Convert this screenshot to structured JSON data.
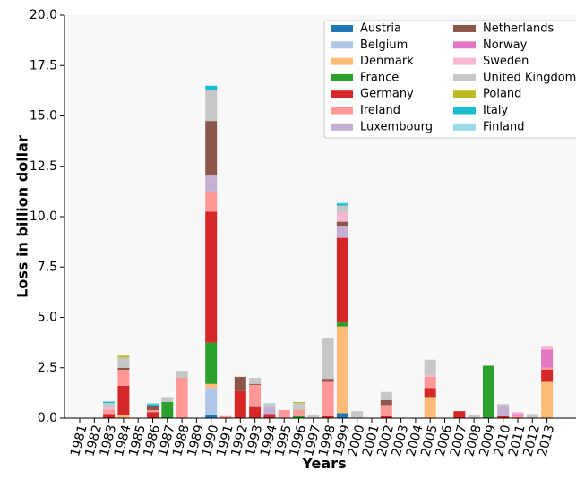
{
  "chart_data": {
    "type": "bar",
    "stacked": true,
    "xlabel": "Years",
    "ylabel": "Loss in billion dollar",
    "ylim": [
      0,
      20
    ],
    "yticks": [
      0.0,
      2.5,
      5.0,
      7.5,
      10.0,
      12.5,
      15.0,
      17.5,
      20.0
    ],
    "ytick_labels": [
      "0.0",
      "2.5",
      "5.0",
      "7.5",
      "10.0",
      "12.5",
      "15.0",
      "17.5",
      "20.0"
    ],
    "legend_position": "top-right",
    "categories": [
      "1981",
      "1982",
      "1983",
      "1984",
      "1985",
      "1986",
      "1987",
      "1988",
      "1989",
      "1990",
      "1991",
      "1992",
      "1993",
      "1994",
      "1995",
      "1996",
      "1997",
      "1998",
      "1999",
      "2000",
      "2001",
      "2002",
      "2003",
      "2004",
      "2005",
      "2006",
      "2007",
      "2008",
      "2009",
      "2010",
      "2011",
      "2012",
      "2013"
    ],
    "series": [
      {
        "name": "Austria",
        "color": "#1f77b4",
        "values": [
          0,
          0,
          0,
          0,
          0,
          0,
          0,
          0,
          0,
          0.15,
          0,
          0,
          0,
          0,
          0,
          0,
          0,
          0,
          0.25,
          0,
          0,
          0,
          0,
          0,
          0,
          0,
          0,
          0,
          0,
          0,
          0,
          0,
          0
        ]
      },
      {
        "name": "Belgium",
        "color": "#aec7e8",
        "values": [
          0,
          0,
          0,
          0,
          0,
          0,
          0,
          0,
          0,
          1.35,
          0,
          0,
          0,
          0,
          0,
          0,
          0,
          0,
          0,
          0,
          0,
          0,
          0,
          0,
          0,
          0,
          0,
          0,
          0,
          0,
          0,
          0,
          0
        ]
      },
      {
        "name": "Denmark",
        "color": "#ffbb78",
        "values": [
          0,
          0,
          0,
          0.15,
          0,
          0,
          0,
          0,
          0,
          0.2,
          0,
          0,
          0,
          0,
          0,
          0,
          0,
          0,
          4.3,
          0,
          0,
          0,
          0,
          0,
          1.05,
          0,
          0,
          0,
          0,
          0,
          0,
          0,
          1.8
        ]
      },
      {
        "name": "France",
        "color": "#2ca02c",
        "values": [
          0,
          0,
          0,
          0,
          0,
          0,
          0.8,
          0,
          0,
          2.05,
          0,
          0,
          0,
          0,
          0,
          0.1,
          0,
          0,
          0.2,
          0,
          0,
          0,
          0,
          0,
          0,
          0,
          0,
          0,
          2.6,
          0,
          0,
          0,
          0
        ]
      },
      {
        "name": "Germany",
        "color": "#d62728",
        "values": [
          0,
          0,
          0.2,
          1.45,
          0,
          0.3,
          0,
          0,
          0,
          6.5,
          0,
          1.35,
          0.55,
          0.2,
          0,
          0,
          0,
          0.1,
          4.2,
          0,
          0,
          0.1,
          0,
          0,
          0.45,
          0,
          0.35,
          0,
          0,
          0.1,
          0,
          0,
          0.6
        ]
      },
      {
        "name": "Ireland",
        "color": "#ff9896",
        "values": [
          0,
          0,
          0.2,
          0.8,
          0,
          0.1,
          0,
          2.0,
          0,
          1.0,
          0.1,
          0,
          1.1,
          0,
          0.4,
          0.3,
          0,
          1.7,
          0,
          0,
          0,
          0.55,
          0,
          0,
          0.55,
          0,
          0,
          0,
          0,
          0,
          0.1,
          0,
          0.1
        ]
      },
      {
        "name": "Luxembourg",
        "color": "#c5b0d5",
        "values": [
          0,
          0,
          0,
          0,
          0,
          0,
          0,
          0,
          0,
          0.8,
          0,
          0,
          0,
          0.35,
          0,
          0,
          0,
          0,
          0.6,
          0,
          0,
          0,
          0,
          0,
          0,
          0,
          0,
          0,
          0,
          0.5,
          0,
          0,
          0
        ]
      },
      {
        "name": "Netherlands",
        "color": "#8c564b",
        "values": [
          0,
          0,
          0,
          0.1,
          0,
          0.2,
          0,
          0,
          0,
          2.7,
          0,
          0.7,
          0.05,
          0,
          0,
          0,
          0,
          0.15,
          0.2,
          0,
          0,
          0.25,
          0,
          0,
          0,
          0,
          0,
          0,
          0,
          0,
          0,
          0,
          0
        ]
      },
      {
        "name": "Norway",
        "color": "#e377c2",
        "values": [
          0,
          0,
          0,
          0,
          0,
          0,
          0,
          0,
          0,
          0,
          0,
          0,
          0,
          0,
          0,
          0,
          0,
          0,
          0,
          0,
          0,
          0,
          0,
          0,
          0,
          0,
          0,
          0,
          0,
          0,
          0.1,
          0,
          0.9
        ]
      },
      {
        "name": "Sweden",
        "color": "#f7b6d2",
        "values": [
          0,
          0,
          0.1,
          0,
          0,
          0,
          0,
          0,
          0,
          0,
          0,
          0,
          0,
          0,
          0,
          0,
          0,
          0,
          0.45,
          0,
          0,
          0,
          0,
          0,
          0.1,
          0,
          0,
          0,
          0,
          0,
          0.1,
          0,
          0.15
        ]
      },
      {
        "name": "United Kingdom",
        "color": "#c7c7c7",
        "values": [
          0,
          0,
          0.25,
          0.5,
          0,
          0,
          0.25,
          0.35,
          0,
          1.55,
          0,
          0,
          0.3,
          0.15,
          0,
          0.35,
          0.15,
          2.0,
          0.35,
          0.35,
          0,
          0.4,
          0,
          0,
          0.75,
          0,
          0,
          0.15,
          0,
          0.1,
          0,
          0.2,
          0
        ]
      },
      {
        "name": "Poland",
        "color": "#bcbd22",
        "values": [
          0,
          0,
          0,
          0.1,
          0,
          0,
          0,
          0,
          0,
          0,
          0,
          0,
          0,
          0,
          0,
          0.05,
          0,
          0,
          0,
          0,
          0,
          0,
          0,
          0,
          0,
          0,
          0,
          0,
          0,
          0,
          0,
          0,
          0
        ]
      },
      {
        "name": "Italy",
        "color": "#17becf",
        "values": [
          0,
          0,
          0.05,
          0,
          0,
          0.1,
          0,
          0,
          0,
          0.2,
          0,
          0,
          0,
          0,
          0,
          0,
          0,
          0,
          0.1,
          0,
          0,
          0,
          0,
          0,
          0,
          0,
          0,
          0,
          0,
          0,
          0,
          0,
          0
        ]
      },
      {
        "name": "Finland",
        "color": "#9edae5",
        "values": [
          0,
          0,
          0.05,
          0,
          0,
          0.05,
          0,
          0,
          0,
          0,
          0,
          0,
          0,
          0.05,
          0,
          0,
          0,
          0,
          0.05,
          0,
          0,
          0,
          0,
          0,
          0,
          0,
          0,
          0,
          0,
          0,
          0,
          0,
          0
        ]
      }
    ]
  }
}
